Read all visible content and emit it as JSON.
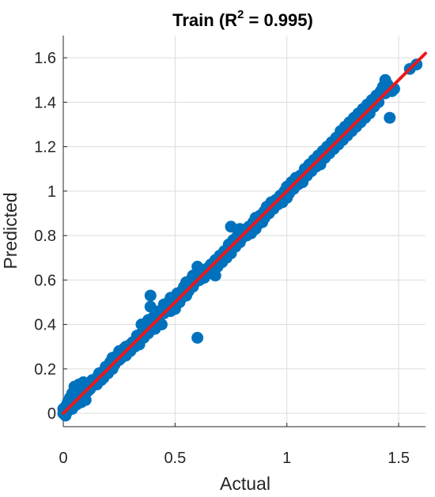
{
  "chart_data": {
    "type": "scatter",
    "title": "Train (R",
    "title_sup": "2",
    "title_rest": " = 0.995)",
    "xlabel": "Actual",
    "ylabel": "Predicted",
    "xlim": [
      0,
      1.62
    ],
    "ylim": [
      -0.06,
      1.7
    ],
    "xticks": [
      0,
      0.5,
      1,
      1.5
    ],
    "xtick_labels": [
      "0",
      "0.5",
      "1",
      "1.5"
    ],
    "yticks": [
      0,
      0.2,
      0.4,
      0.6,
      0.8,
      1,
      1.2,
      1.4,
      1.6
    ],
    "ytick_labels": [
      "0",
      "0.2",
      "0.4",
      "0.6",
      "0.8",
      "1",
      "1.2",
      "1.4",
      "1.6"
    ],
    "grid": true,
    "marker_color": "#0072BD",
    "line_color": "#E8191C",
    "fit_line": {
      "x": [
        0,
        1.62
      ],
      "y": [
        0,
        1.62
      ]
    },
    "series": [
      {
        "points": [
          [
            0.0,
            0.0
          ],
          [
            0.0,
            0.02
          ],
          [
            0.01,
            -0.01
          ],
          [
            0.01,
            0.03
          ],
          [
            0.02,
            0.01
          ],
          [
            0.02,
            0.05
          ],
          [
            0.03,
            0.04
          ],
          [
            0.03,
            0.07
          ],
          [
            0.04,
            0.02
          ],
          [
            0.04,
            0.09
          ],
          [
            0.05,
            0.06
          ],
          [
            0.05,
            0.12
          ],
          [
            0.06,
            0.04
          ],
          [
            0.06,
            0.1
          ],
          [
            0.07,
            0.08
          ],
          [
            0.07,
            0.13
          ],
          [
            0.08,
            0.05
          ],
          [
            0.08,
            0.11
          ],
          [
            0.09,
            0.14
          ],
          [
            0.09,
            0.08
          ],
          [
            0.1,
            0.06
          ],
          [
            0.1,
            0.12
          ],
          [
            0.11,
            0.1
          ],
          [
            0.12,
            0.11
          ],
          [
            0.13,
            0.15
          ],
          [
            0.14,
            0.13
          ],
          [
            0.15,
            0.16
          ],
          [
            0.15,
            0.13
          ],
          [
            0.16,
            0.18
          ],
          [
            0.17,
            0.15
          ],
          [
            0.18,
            0.19
          ],
          [
            0.18,
            0.16
          ],
          [
            0.19,
            0.21
          ],
          [
            0.2,
            0.18
          ],
          [
            0.21,
            0.23
          ],
          [
            0.22,
            0.2
          ],
          [
            0.22,
            0.25
          ],
          [
            0.23,
            0.22
          ],
          [
            0.24,
            0.26
          ],
          [
            0.25,
            0.24
          ],
          [
            0.25,
            0.28
          ],
          [
            0.26,
            0.25
          ],
          [
            0.27,
            0.29
          ],
          [
            0.28,
            0.26
          ],
          [
            0.28,
            0.3
          ],
          [
            0.29,
            0.28
          ],
          [
            0.3,
            0.31
          ],
          [
            0.3,
            0.28
          ],
          [
            0.31,
            0.32
          ],
          [
            0.32,
            0.3
          ],
          [
            0.33,
            0.35
          ],
          [
            0.34,
            0.31
          ],
          [
            0.35,
            0.36
          ],
          [
            0.35,
            0.4
          ],
          [
            0.36,
            0.34
          ],
          [
            0.37,
            0.38
          ],
          [
            0.38,
            0.36
          ],
          [
            0.38,
            0.42
          ],
          [
            0.39,
            0.53
          ],
          [
            0.39,
            0.48
          ],
          [
            0.4,
            0.39
          ],
          [
            0.4,
            0.43
          ],
          [
            0.41,
            0.38
          ],
          [
            0.42,
            0.44
          ],
          [
            0.43,
            0.41
          ],
          [
            0.43,
            0.46
          ],
          [
            0.44,
            0.4
          ],
          [
            0.45,
            0.49
          ],
          [
            0.45,
            0.45
          ],
          [
            0.46,
            0.47
          ],
          [
            0.47,
            0.5
          ],
          [
            0.48,
            0.46
          ],
          [
            0.48,
            0.52
          ],
          [
            0.49,
            0.49
          ],
          [
            0.5,
            0.51
          ],
          [
            0.5,
            0.47
          ],
          [
            0.51,
            0.54
          ],
          [
            0.52,
            0.5
          ],
          [
            0.53,
            0.55
          ],
          [
            0.53,
            0.52
          ],
          [
            0.54,
            0.57
          ],
          [
            0.55,
            0.53
          ],
          [
            0.55,
            0.59
          ],
          [
            0.56,
            0.55
          ],
          [
            0.57,
            0.6
          ],
          [
            0.58,
            0.57
          ],
          [
            0.58,
            0.62
          ],
          [
            0.59,
            0.59
          ],
          [
            0.6,
            0.66
          ],
          [
            0.6,
            0.34
          ],
          [
            0.61,
            0.6
          ],
          [
            0.62,
            0.63
          ],
          [
            0.63,
            0.61
          ],
          [
            0.64,
            0.65
          ],
          [
            0.65,
            0.63
          ],
          [
            0.66,
            0.67
          ],
          [
            0.67,
            0.64
          ],
          [
            0.68,
            0.69
          ],
          [
            0.68,
            0.62
          ],
          [
            0.69,
            0.66
          ],
          [
            0.7,
            0.71
          ],
          [
            0.71,
            0.68
          ],
          [
            0.72,
            0.73
          ],
          [
            0.73,
            0.7
          ],
          [
            0.74,
            0.76
          ],
          [
            0.75,
            0.72
          ],
          [
            0.75,
            0.84
          ],
          [
            0.76,
            0.78
          ],
          [
            0.77,
            0.75
          ],
          [
            0.78,
            0.8
          ],
          [
            0.79,
            0.77
          ],
          [
            0.79,
            0.83
          ],
          [
            0.8,
            0.79
          ],
          [
            0.81,
            0.82
          ],
          [
            0.82,
            0.8
          ],
          [
            0.83,
            0.84
          ],
          [
            0.84,
            0.81
          ],
          [
            0.85,
            0.86
          ],
          [
            0.86,
            0.83
          ],
          [
            0.86,
            0.88
          ],
          [
            0.87,
            0.85
          ],
          [
            0.88,
            0.89
          ],
          [
            0.89,
            0.86
          ],
          [
            0.9,
            0.91
          ],
          [
            0.9,
            0.88
          ],
          [
            0.91,
            0.93
          ],
          [
            0.92,
            0.9
          ],
          [
            0.93,
            0.95
          ],
          [
            0.94,
            0.92
          ],
          [
            0.95,
            0.96
          ],
          [
            0.96,
            0.94
          ],
          [
            0.97,
            0.98
          ],
          [
            0.98,
            0.95
          ],
          [
            0.99,
            1.0
          ],
          [
            1.0,
            0.97
          ],
          [
            1.0,
            1.02
          ],
          [
            1.01,
            0.99
          ],
          [
            1.02,
            1.04
          ],
          [
            1.03,
            1.01
          ],
          [
            1.04,
            1.06
          ],
          [
            1.05,
            1.03
          ],
          [
            1.06,
            1.07
          ],
          [
            1.07,
            1.04
          ],
          [
            1.08,
            1.1
          ],
          [
            1.09,
            1.07
          ],
          [
            1.1,
            1.12
          ],
          [
            1.11,
            1.09
          ],
          [
            1.12,
            1.14
          ],
          [
            1.13,
            1.11
          ],
          [
            1.14,
            1.16
          ],
          [
            1.15,
            1.12
          ],
          [
            1.16,
            1.18
          ],
          [
            1.17,
            1.15
          ],
          [
            1.18,
            1.2
          ],
          [
            1.19,
            1.17
          ],
          [
            1.2,
            1.22
          ],
          [
            1.21,
            1.19
          ],
          [
            1.22,
            1.24
          ],
          [
            1.23,
            1.21
          ],
          [
            1.24,
            1.27
          ],
          [
            1.25,
            1.23
          ],
          [
            1.26,
            1.29
          ],
          [
            1.27,
            1.25
          ],
          [
            1.28,
            1.31
          ],
          [
            1.29,
            1.27
          ],
          [
            1.3,
            1.33
          ],
          [
            1.31,
            1.29
          ],
          [
            1.32,
            1.35
          ],
          [
            1.33,
            1.31
          ],
          [
            1.34,
            1.37
          ],
          [
            1.35,
            1.33
          ],
          [
            1.36,
            1.39
          ],
          [
            1.37,
            1.35
          ],
          [
            1.38,
            1.41
          ],
          [
            1.39,
            1.38
          ],
          [
            1.4,
            1.43
          ],
          [
            1.41,
            1.4
          ],
          [
            1.42,
            1.45
          ],
          [
            1.43,
            1.47
          ],
          [
            1.44,
            1.44
          ],
          [
            1.44,
            1.5
          ],
          [
            1.45,
            1.48
          ],
          [
            1.46,
            1.33
          ],
          [
            1.47,
            1.45
          ],
          [
            1.48,
            1.46
          ],
          [
            1.55,
            1.55
          ],
          [
            1.58,
            1.57
          ]
        ]
      }
    ]
  }
}
